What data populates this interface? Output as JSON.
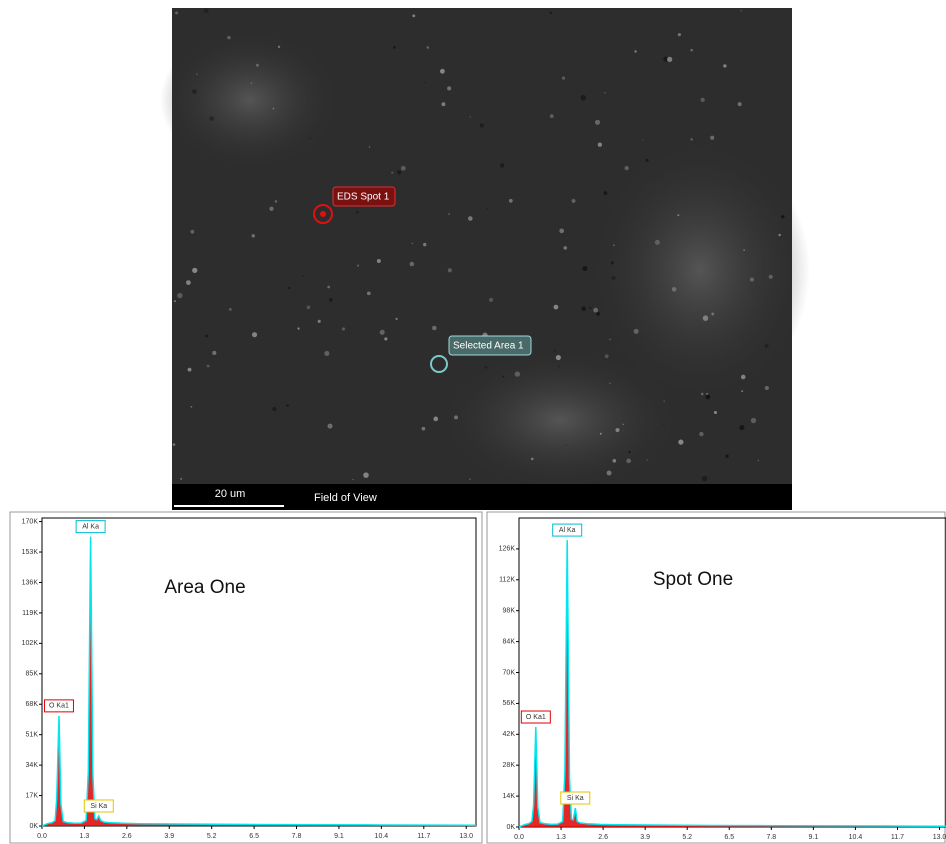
{
  "image": {
    "labels": [
      "EDS Spot 1",
      "Selected Area 1"
    ],
    "scale_bar": "20 um",
    "caption": "Field of View"
  },
  "chart_data": [
    {
      "type": "line",
      "title": "Area One",
      "color": "#00e5ee",
      "fill": "#e00000",
      "x": [
        0,
        0.1,
        0.2,
        0.3,
        0.4,
        0.45,
        0.52,
        0.58,
        0.65,
        0.8,
        1.0,
        1.2,
        1.35,
        1.42,
        1.49,
        1.56,
        1.62,
        1.68,
        1.74,
        1.8,
        1.9,
        2.1,
        2.5,
        3.0,
        4.0,
        6.0,
        8.0,
        10.0,
        12.0,
        13.3
      ],
      "values": [
        0,
        800,
        1500,
        1800,
        3000,
        15000,
        61500,
        12000,
        2500,
        1800,
        1500,
        1600,
        3000,
        30000,
        161600,
        28000,
        4000,
        3500,
        5600,
        3000,
        2200,
        1800,
        1500,
        1300,
        1100,
        900,
        700,
        600,
        500,
        400
      ],
      "xlim": [
        0,
        13.3
      ],
      "ylim": [
        0,
        172000
      ],
      "xticks": [
        {
          "value": 0,
          "label": "0.0"
        },
        1.3,
        2.6,
        3.9,
        5.2,
        6.5,
        7.8,
        9.1,
        10.4,
        11.7,
        {
          "value": 13,
          "label": "13.0"
        }
      ],
      "yticks": [
        {
          "value": 0,
          "label": "0K"
        },
        {
          "value": 17000,
          "label": "17K"
        },
        {
          "value": 34000,
          "label": "34K"
        },
        {
          "value": 51000,
          "label": "51K"
        },
        {
          "value": 68000,
          "label": "68K"
        },
        {
          "value": 85000,
          "label": "85K"
        },
        {
          "value": 102000,
          "label": "102K"
        },
        {
          "value": 119000,
          "label": "119K"
        },
        {
          "value": 136000,
          "label": "136K"
        },
        {
          "value": 153000,
          "label": "153K"
        },
        {
          "value": 170000,
          "label": "170K"
        }
      ],
      "annotations": [
        {
          "text": "O Ka1",
          "x": 0.52,
          "color": "#e00000"
        },
        {
          "text": "Al Ka",
          "x": 1.49,
          "color": "#00bcd4"
        },
        {
          "text": "Si Ka",
          "x": 1.74,
          "color": "#e6c200"
        }
      ]
    },
    {
      "type": "line",
      "title": "Spot One",
      "color": "#00e5ee",
      "fill": "#e00000",
      "x": [
        0,
        0.1,
        0.2,
        0.3,
        0.4,
        0.45,
        0.52,
        0.58,
        0.65,
        0.8,
        1.0,
        1.2,
        1.35,
        1.42,
        1.49,
        1.56,
        1.62,
        1.68,
        1.74,
        1.8,
        1.9,
        2.1,
        2.5,
        3.0,
        4.0,
        6.0,
        8.0,
        10.0,
        12.0,
        13.2
      ],
      "values": [
        0,
        600,
        1200,
        1500,
        2500,
        10000,
        45300,
        9000,
        2000,
        1500,
        1200,
        1300,
        2500,
        25000,
        130000,
        22000,
        3500,
        3200,
        8600,
        2500,
        1800,
        1500,
        1200,
        1000,
        900,
        700,
        600,
        500,
        400,
        300
      ],
      "xlim": [
        0,
        13.2
      ],
      "ylim": [
        0,
        140000
      ],
      "xticks": [
        {
          "value": 0,
          "label": "0.0"
        },
        1.3,
        2.6,
        3.9,
        5.2,
        6.5,
        7.8,
        9.1,
        10.4,
        11.7,
        {
          "value": 13,
          "label": "13.0"
        }
      ],
      "yticks": [
        {
          "value": 0,
          "label": "0K"
        },
        {
          "value": 14000,
          "label": "14K"
        },
        {
          "value": 28000,
          "label": "28K"
        },
        {
          "value": 42000,
          "label": "42K"
        },
        {
          "value": 56000,
          "label": "56K"
        },
        {
          "value": 70000,
          "label": "70K"
        },
        {
          "value": 84000,
          "label": "84K"
        },
        {
          "value": 98000,
          "label": "98K"
        },
        {
          "value": 112000,
          "label": "112K"
        },
        {
          "value": 126000,
          "label": "126K"
        }
      ],
      "annotations": [
        {
          "text": "O Ka1",
          "x": 0.52,
          "color": "#e00000"
        },
        {
          "text": "Al Ka",
          "x": 1.49,
          "color": "#00bcd4"
        },
        {
          "text": "Si Ka",
          "x": 1.74,
          "color": "#e6c200"
        }
      ]
    }
  ]
}
